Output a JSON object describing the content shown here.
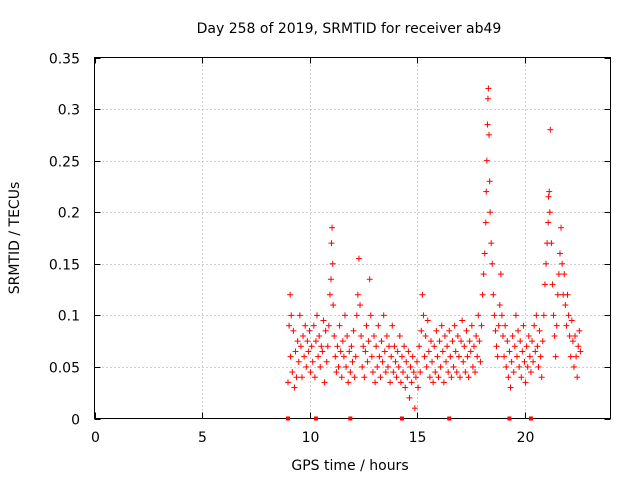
{
  "chart_data": {
    "type": "scatter",
    "title": "Day 258 of 2019, SRMTID for receiver ab49",
    "xlabel": "GPS time / hours",
    "ylabel": "SRMTID / TECUs",
    "xlim": [
      0,
      24
    ],
    "ylim": [
      0,
      0.35
    ],
    "xticks": [
      0,
      5,
      10,
      15,
      20
    ],
    "xtick_labels": [
      "0",
      "5",
      "10",
      "15",
      "20"
    ],
    "yticks": [
      0,
      0.05,
      0.1,
      0.15,
      0.2,
      0.25,
      0.3,
      0.35
    ],
    "ytick_labels": [
      "0",
      "0.05",
      "0.1",
      "0.15",
      "0.2",
      "0.25",
      "0.3",
      "0.35"
    ],
    "grid": true,
    "marker": "+",
    "color": "#ff0000",
    "gap_markers_x": [
      9.0,
      10.3,
      11.9,
      14.3,
      16.5,
      19.3,
      20.3
    ],
    "series": [
      {
        "name": "SRMTID",
        "points": [
          [
            9.0,
            0.035
          ],
          [
            9.05,
            0.09
          ],
          [
            9.1,
            0.12
          ],
          [
            9.12,
            0.06
          ],
          [
            9.15,
            0.1
          ],
          [
            9.2,
            0.045
          ],
          [
            9.25,
            0.085
          ],
          [
            9.3,
            0.03
          ],
          [
            9.35,
            0.065
          ],
          [
            9.4,
            0.04
          ],
          [
            9.45,
            0.075
          ],
          [
            9.5,
            0.055
          ],
          [
            9.55,
            0.1
          ],
          [
            9.6,
            0.07
          ],
          [
            9.65,
            0.04
          ],
          [
            9.7,
            0.08
          ],
          [
            9.75,
            0.06
          ],
          [
            9.8,
            0.09
          ],
          [
            9.85,
            0.05
          ],
          [
            9.9,
            0.075
          ],
          [
            9.95,
            0.065
          ],
          [
            10.0,
            0.085
          ],
          [
            10.05,
            0.045
          ],
          [
            10.1,
            0.07
          ],
          [
            10.15,
            0.055
          ],
          [
            10.2,
            0.09
          ],
          [
            10.25,
            0.04
          ],
          [
            10.3,
            0.075
          ],
          [
            10.35,
            0.1
          ],
          [
            10.4,
            0.06
          ],
          [
            10.45,
            0.08
          ],
          [
            10.5,
            0.05
          ],
          [
            10.55,
            0.07
          ],
          [
            10.6,
            0.065
          ],
          [
            10.65,
            0.095
          ],
          [
            10.7,
            0.035
          ],
          [
            10.75,
            0.085
          ],
          [
            10.8,
            0.055
          ],
          [
            10.85,
            0.07
          ],
          [
            10.9,
            0.09
          ],
          [
            10.95,
            0.12
          ],
          [
            11.0,
            0.135
          ],
          [
            11.02,
            0.17
          ],
          [
            11.05,
            0.185
          ],
          [
            11.08,
            0.15
          ],
          [
            11.1,
            0.11
          ],
          [
            11.15,
            0.08
          ],
          [
            11.2,
            0.06
          ],
          [
            11.25,
            0.045
          ],
          [
            11.3,
            0.07
          ],
          [
            11.35,
            0.05
          ],
          [
            11.4,
            0.09
          ],
          [
            11.45,
            0.065
          ],
          [
            11.5,
            0.04
          ],
          [
            11.55,
            0.075
          ],
          [
            11.6,
            0.06
          ],
          [
            11.65,
            0.1
          ],
          [
            11.7,
            0.05
          ],
          [
            11.75,
            0.08
          ],
          [
            11.8,
            0.035
          ],
          [
            11.85,
            0.065
          ],
          [
            11.9,
            0.045
          ],
          [
            11.95,
            0.07
          ],
          [
            12.0,
            0.055
          ],
          [
            12.05,
            0.085
          ],
          [
            12.1,
            0.04
          ],
          [
            12.15,
            0.06
          ],
          [
            12.2,
            0.1
          ],
          [
            12.25,
            0.12
          ],
          [
            12.3,
            0.155
          ],
          [
            12.35,
            0.11
          ],
          [
            12.4,
            0.08
          ],
          [
            12.45,
            0.05
          ],
          [
            12.5,
            0.07
          ],
          [
            12.55,
            0.04
          ],
          [
            12.6,
            0.065
          ],
          [
            12.65,
            0.09
          ],
          [
            12.7,
            0.055
          ],
          [
            12.75,
            0.075
          ],
          [
            12.8,
            0.135
          ],
          [
            12.85,
            0.1
          ],
          [
            12.9,
            0.06
          ],
          [
            12.95,
            0.045
          ],
          [
            13.0,
            0.08
          ],
          [
            13.05,
            0.035
          ],
          [
            13.1,
            0.07
          ],
          [
            13.15,
            0.05
          ],
          [
            13.2,
            0.09
          ],
          [
            13.25,
            0.06
          ],
          [
            13.3,
            0.04
          ],
          [
            13.35,
            0.075
          ],
          [
            13.4,
            0.055
          ],
          [
            13.45,
            0.1
          ],
          [
            13.5,
            0.065
          ],
          [
            13.55,
            0.045
          ],
          [
            13.6,
            0.08
          ],
          [
            13.65,
            0.05
          ],
          [
            13.7,
            0.07
          ],
          [
            13.75,
            0.035
          ],
          [
            13.8,
            0.06
          ],
          [
            13.85,
            0.09
          ],
          [
            13.9,
            0.045
          ],
          [
            13.95,
            0.07
          ],
          [
            14.0,
            0.055
          ],
          [
            14.05,
            0.04
          ],
          [
            14.1,
            0.065
          ],
          [
            14.15,
            0.05
          ],
          [
            14.2,
            0.08
          ],
          [
            14.25,
            0.035
          ],
          [
            14.3,
            0.06
          ],
          [
            14.35,
            0.045
          ],
          [
            14.4,
            0.07
          ],
          [
            14.45,
            0.03
          ],
          [
            14.5,
            0.055
          ],
          [
            14.55,
            0.04
          ],
          [
            14.6,
            0.065
          ],
          [
            14.65,
            0.02
          ],
          [
            14.7,
            0.05
          ],
          [
            14.75,
            0.035
          ],
          [
            14.8,
            0.06
          ],
          [
            14.85,
            0.045
          ],
          [
            14.9,
            0.01
          ],
          [
            14.95,
            0.04
          ],
          [
            15.0,
            0.055
          ],
          [
            15.05,
            0.03
          ],
          [
            15.1,
            0.07
          ],
          [
            15.15,
            0.045
          ],
          [
            15.2,
            0.085
          ],
          [
            15.25,
            0.12
          ],
          [
            15.3,
            0.1
          ],
          [
            15.35,
            0.06
          ],
          [
            15.4,
            0.08
          ],
          [
            15.45,
            0.05
          ],
          [
            15.5,
            0.095
          ],
          [
            15.55,
            0.065
          ],
          [
            15.6,
            0.04
          ],
          [
            15.65,
            0.075
          ],
          [
            15.7,
            0.055
          ],
          [
            15.75,
            0.035
          ],
          [
            15.8,
            0.07
          ],
          [
            15.85,
            0.045
          ],
          [
            15.9,
            0.085
          ],
          [
            15.95,
            0.06
          ],
          [
            16.0,
            0.04
          ],
          [
            16.05,
            0.075
          ],
          [
            16.1,
            0.05
          ],
          [
            16.15,
            0.09
          ],
          [
            16.2,
            0.065
          ],
          [
            16.25,
            0.035
          ],
          [
            16.3,
            0.08
          ],
          [
            16.35,
            0.055
          ],
          [
            16.4,
            0.07
          ],
          [
            16.45,
            0.045
          ],
          [
            16.5,
            0.085
          ],
          [
            16.55,
            0.06
          ],
          [
            16.6,
            0.04
          ],
          [
            16.65,
            0.075
          ],
          [
            16.7,
            0.05
          ],
          [
            16.75,
            0.09
          ],
          [
            16.8,
            0.065
          ],
          [
            16.85,
            0.045
          ],
          [
            16.9,
            0.08
          ],
          [
            16.95,
            0.06
          ],
          [
            17.0,
            0.04
          ],
          [
            17.05,
            0.075
          ],
          [
            17.1,
            0.095
          ],
          [
            17.15,
            0.055
          ],
          [
            17.2,
            0.07
          ],
          [
            17.25,
            0.045
          ],
          [
            17.3,
            0.085
          ],
          [
            17.35,
            0.06
          ],
          [
            17.4,
            0.04
          ],
          [
            17.45,
            0.075
          ],
          [
            17.5,
            0.065
          ],
          [
            17.55,
            0.09
          ],
          [
            17.6,
            0.05
          ],
          [
            17.65,
            0.07
          ],
          [
            17.7,
            0.045
          ],
          [
            17.75,
            0.08
          ],
          [
            17.8,
            0.06
          ],
          [
            17.85,
            0.1
          ],
          [
            17.9,
            0.075
          ],
          [
            17.95,
            0.055
          ],
          [
            18.0,
            0.09
          ],
          [
            18.05,
            0.12
          ],
          [
            18.1,
            0.14
          ],
          [
            18.15,
            0.16
          ],
          [
            18.2,
            0.19
          ],
          [
            18.22,
            0.22
          ],
          [
            18.25,
            0.25
          ],
          [
            18.28,
            0.285
          ],
          [
            18.3,
            0.31
          ],
          [
            18.32,
            0.32
          ],
          [
            18.35,
            0.275
          ],
          [
            18.38,
            0.23
          ],
          [
            18.4,
            0.2
          ],
          [
            18.45,
            0.17
          ],
          [
            18.5,
            0.15
          ],
          [
            18.55,
            0.12
          ],
          [
            18.6,
            0.1
          ],
          [
            18.65,
            0.085
          ],
          [
            18.7,
            0.07
          ],
          [
            18.75,
            0.06
          ],
          [
            18.8,
            0.09
          ],
          [
            18.85,
            0.11
          ],
          [
            18.9,
            0.14
          ],
          [
            18.95,
            0.1
          ],
          [
            19.0,
            0.08
          ],
          [
            19.05,
            0.06
          ],
          [
            19.1,
            0.09
          ],
          [
            19.15,
            0.05
          ],
          [
            19.2,
            0.075
          ],
          [
            19.25,
            0.04
          ],
          [
            19.3,
            0.065
          ],
          [
            19.35,
            0.03
          ],
          [
            19.4,
            0.055
          ],
          [
            19.45,
            0.08
          ],
          [
            19.5,
            0.045
          ],
          [
            19.55,
            0.07
          ],
          [
            19.6,
            0.1
          ],
          [
            19.65,
            0.06
          ],
          [
            19.7,
            0.085
          ],
          [
            19.75,
            0.05
          ],
          [
            19.8,
            0.075
          ],
          [
            19.85,
            0.04
          ],
          [
            19.9,
            0.065
          ],
          [
            19.95,
            0.09
          ],
          [
            20.0,
            0.055
          ],
          [
            20.05,
            0.035
          ],
          [
            20.1,
            0.07
          ],
          [
            20.15,
            0.05
          ],
          [
            20.2,
            0.08
          ],
          [
            20.25,
            0.06
          ],
          [
            20.3,
            0.045
          ],
          [
            20.35,
            0.075
          ],
          [
            20.4,
            0.055
          ],
          [
            20.45,
            0.09
          ],
          [
            20.5,
            0.065
          ],
          [
            20.55,
            0.1
          ],
          [
            20.6,
            0.07
          ],
          [
            20.65,
            0.05
          ],
          [
            20.7,
            0.085
          ],
          [
            20.75,
            0.06
          ],
          [
            20.8,
            0.04
          ],
          [
            20.85,
            0.075
          ],
          [
            20.9,
            0.1
          ],
          [
            20.95,
            0.13
          ],
          [
            21.0,
            0.15
          ],
          [
            21.05,
            0.17
          ],
          [
            21.1,
            0.19
          ],
          [
            21.12,
            0.215
          ],
          [
            21.15,
            0.22
          ],
          [
            21.18,
            0.2
          ],
          [
            21.2,
            0.28
          ],
          [
            21.25,
            0.17
          ],
          [
            21.3,
            0.13
          ],
          [
            21.35,
            0.1
          ],
          [
            21.4,
            0.08
          ],
          [
            21.45,
            0.06
          ],
          [
            21.5,
            0.09
          ],
          [
            21.55,
            0.12
          ],
          [
            21.6,
            0.14
          ],
          [
            21.65,
            0.16
          ],
          [
            21.7,
            0.185
          ],
          [
            21.75,
            0.15
          ],
          [
            21.8,
            0.12
          ],
          [
            21.85,
            0.14
          ],
          [
            21.9,
            0.11
          ],
          [
            21.95,
            0.09
          ],
          [
            22.0,
            0.12
          ],
          [
            22.05,
            0.1
          ],
          [
            22.1,
            0.08
          ],
          [
            22.15,
            0.06
          ],
          [
            22.2,
            0.095
          ],
          [
            22.25,
            0.075
          ],
          [
            22.3,
            0.05
          ],
          [
            22.35,
            0.08
          ],
          [
            22.4,
            0.06
          ],
          [
            22.45,
            0.04
          ],
          [
            22.5,
            0.07
          ],
          [
            22.55,
            0.085
          ],
          [
            22.6,
            0.065
          ]
        ]
      }
    ]
  }
}
